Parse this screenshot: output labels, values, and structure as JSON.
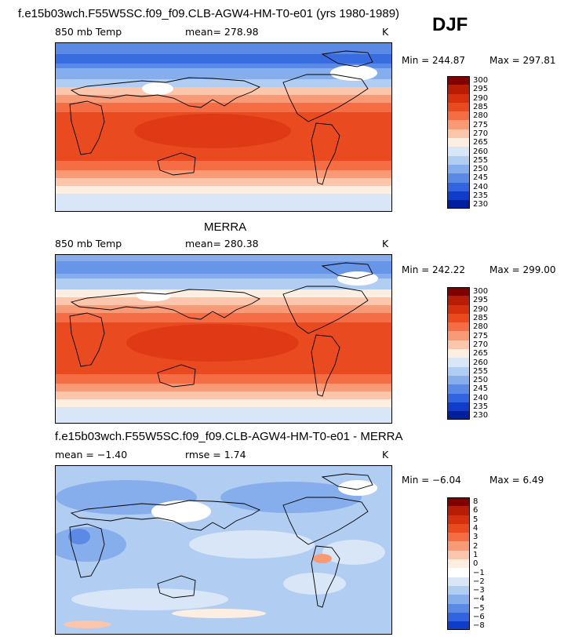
{
  "season": "DJF",
  "panels": [
    {
      "title": "f.e15b03wch.F55W5SC.f09_f09.CLB-AGW4-HM-T0-e01 (yrs 1980-1989)",
      "left_label": "850 mb Temp",
      "center_label": "mean= 278.98",
      "units": "K",
      "min_label": "Min = 244.87",
      "max_label": "Max = 297.81",
      "colorbar_labels": [
        "300",
        "295",
        "290",
        "285",
        "280",
        "275",
        "270",
        "265",
        "260",
        "255",
        "250",
        "245",
        "240",
        "235",
        "230"
      ]
    },
    {
      "title": "MERRA",
      "left_label": "850 mb Temp",
      "center_label": "mean= 280.38",
      "units": "K",
      "min_label": "Min = 242.22",
      "max_label": "Max = 299.00",
      "colorbar_labels": [
        "300",
        "295",
        "290",
        "285",
        "280",
        "275",
        "270",
        "265",
        "260",
        "255",
        "250",
        "245",
        "240",
        "235",
        "230"
      ]
    },
    {
      "title": "f.e15b03wch.F55W5SC.f09_f09.CLB-AGW4-HM-T0-e01 - MERRA",
      "left_label": "mean =  −1.40",
      "center_label": "rmse =   1.74",
      "units": "K",
      "min_label": "Min =  −6.04",
      "max_label": "Max =   6.49",
      "colorbar_labels": [
        "8",
        "6",
        "5",
        "4",
        "3",
        "2",
        "1",
        "0",
        "−1",
        "−2",
        "−3",
        "−4",
        "−5",
        "−6",
        "−8"
      ]
    }
  ],
  "colors": {
    "temp_scale": [
      "#800000",
      "#b71c05",
      "#d7300f",
      "#ea4a1f",
      "#f56d44",
      "#f99a77",
      "#fcc6ac",
      "#fdeee2",
      "#d9e6f7",
      "#b1cdf2",
      "#86aeec",
      "#5a8ae6",
      "#3264e0",
      "#0f3cc9",
      "#001f9c",
      "#00106e"
    ],
    "diff_scale": [
      "#800000",
      "#b71c05",
      "#d7300f",
      "#ea4a1f",
      "#f56d44",
      "#f99a77",
      "#fcc6ac",
      "#fdeee2",
      "#ffffff",
      "#d9e6f7",
      "#b1cdf2",
      "#86aeec",
      "#5a8ae6",
      "#3264e0",
      "#0f3cc9",
      "#001f9c",
      "#00106e"
    ]
  }
}
